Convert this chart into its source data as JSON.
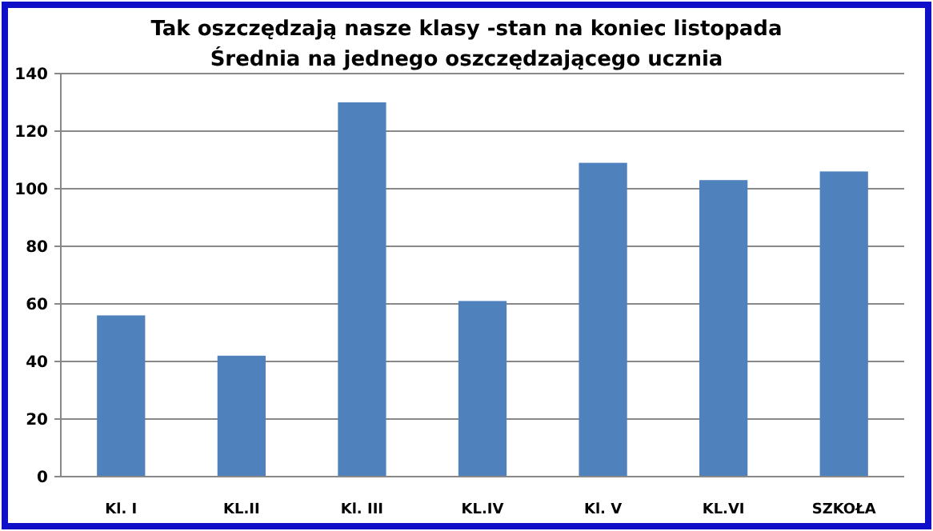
{
  "chart_data": {
    "type": "bar",
    "title": "Tak oszczędzają nasze klasy -stan na koniec listopada",
    "subtitle": "Średnia na jednego oszczędzającego ucznia",
    "categories": [
      "Kl. I",
      "KL.II",
      "Kl. III",
      "KL.IV",
      "Kl. V",
      "KL.VI",
      "SZKOŁA"
    ],
    "values": [
      56,
      42,
      130,
      61,
      109,
      103,
      106
    ],
    "color": "#4f81bd",
    "ylim": [
      0,
      140
    ],
    "yticks": [
      0,
      20,
      40,
      60,
      80,
      100,
      120,
      140
    ],
    "grid": "y"
  }
}
